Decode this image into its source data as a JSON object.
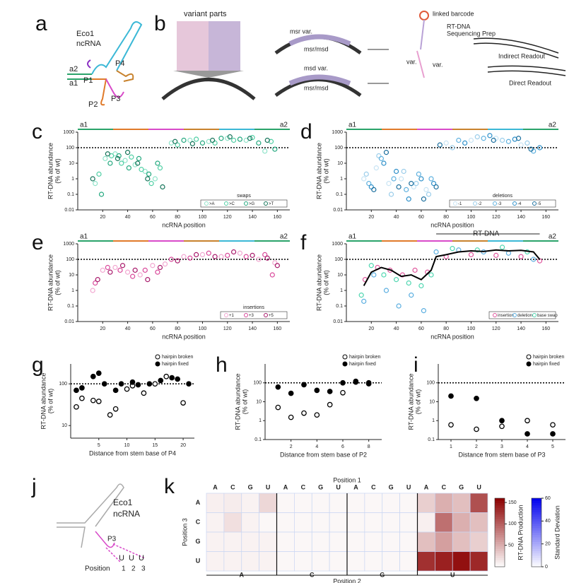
{
  "panel_labels": [
    "a",
    "b",
    "c",
    "d",
    "e",
    "f",
    "g",
    "h",
    "i",
    "j",
    "k"
  ],
  "a": {
    "texts": [
      "Eco1",
      "ncRNA",
      "a2",
      "a1",
      "P1",
      "P2",
      "P3",
      "P4"
    ]
  },
  "b": {
    "texts": [
      "variant parts",
      "msr var.",
      "msr/msd",
      "msd var.",
      "msr/msd",
      "linked barcode",
      "RT-DNA",
      "Sequencing Prep",
      "Indirect Readout",
      "Direct Readout",
      "var.",
      "var."
    ]
  },
  "scatter_panels": [
    {
      "ylabel": "RT-DNA abundance",
      "ylabel_unit": "(% of wt)",
      "xlabel": "ncRNA position",
      "legend_title": "swaps",
      "end_labels": [
        "a1",
        "a2"
      ],
      "xlim": [
        0,
        170
      ],
      "xticks": [
        20,
        40,
        60,
        80,
        100,
        120,
        140,
        160
      ],
      "ylim": [
        0.01,
        1000
      ],
      "yticks": [
        0.01,
        0.1,
        1,
        10,
        100,
        1000
      ],
      "log_y": true,
      "reference_line": 100,
      "series": [
        {
          "name": ">A",
          "color": "#8fe3c9",
          "x": [
            14,
            22,
            30,
            38,
            46,
            54,
            62,
            75,
            90,
            105,
            120,
            135,
            150
          ],
          "values": [
            0.5,
            20,
            40,
            15,
            8,
            3,
            1,
            200,
            300,
            250,
            400,
            300,
            60
          ]
        },
        {
          "name": ">C",
          "color": "#4fcfa4",
          "x": [
            17,
            27,
            35,
            43,
            51,
            59,
            66,
            80,
            95,
            110,
            125,
            140,
            155
          ],
          "values": [
            2,
            30,
            10,
            25,
            4,
            0.5,
            5,
            150,
            350,
            200,
            300,
            450,
            250
          ]
        },
        {
          "name": ">G",
          "color": "#22a87e",
          "x": [
            19,
            26,
            33,
            41,
            49,
            57,
            64,
            85,
            100,
            115,
            130,
            145,
            158
          ],
          "values": [
            0.1,
            10,
            30,
            5,
            20,
            2,
            10,
            300,
            200,
            400,
            350,
            200,
            80
          ]
        },
        {
          "name": ">T",
          "color": "#137358",
          "x": [
            12,
            24,
            32,
            40,
            48,
            56,
            68,
            78,
            92,
            108,
            122,
            138,
            152
          ],
          "values": [
            1,
            40,
            20,
            50,
            10,
            1,
            0.3,
            250,
            180,
            300,
            500,
            400,
            300
          ]
        }
      ]
    },
    {
      "ylabel": "RT-DNA abundance",
      "ylabel_unit": "(% of wt)",
      "xlabel": "ncRNA position",
      "legend_title": "deletions",
      "end_labels": [
        "a1",
        "a2"
      ],
      "xlim": [
        0,
        170
      ],
      "xticks": [
        20,
        40,
        60,
        80,
        100,
        120,
        140,
        160
      ],
      "ylim": [
        0.01,
        1000
      ],
      "yticks": [
        0.01,
        0.1,
        1,
        10,
        100,
        1000
      ],
      "log_y": true,
      "reference_line": 100,
      "series": [
        {
          "name": "-1",
          "color": "#c8e4f4",
          "x": [
            14,
            24,
            34,
            44,
            54,
            64,
            80,
            100,
            120,
            140
          ],
          "values": [
            1,
            5,
            0.5,
            1,
            0.3,
            0.2,
            200,
            300,
            400,
            150
          ]
        },
        {
          "name": "-2",
          "color": "#9acdea",
          "x": [
            16,
            26,
            36,
            46,
            56,
            66,
            85,
            105,
            125,
            145
          ],
          "values": [
            2,
            30,
            0.1,
            3,
            0.5,
            0.1,
            100,
            500,
            300,
            200
          ]
        },
        {
          "name": "-3",
          "color": "#5fb1df",
          "x": [
            18,
            28,
            38,
            48,
            58,
            68,
            90,
            110,
            130,
            150
          ],
          "values": [
            0.5,
            20,
            1,
            0.2,
            2,
            1,
            300,
            400,
            250,
            60
          ]
        },
        {
          "name": "-4",
          "color": "#2d8fc9",
          "x": [
            20,
            30,
            40,
            50,
            60,
            70,
            95,
            115,
            135,
            155
          ],
          "values": [
            0.3,
            10,
            3,
            0.05,
            1,
            0.5,
            200,
            600,
            350,
            100
          ]
        },
        {
          "name": "-5",
          "color": "#1b6f9e",
          "x": [
            22,
            32,
            42,
            52,
            62,
            72,
            75,
            118,
            138,
            148
          ],
          "values": [
            0.2,
            50,
            0.3,
            0.5,
            0.05,
            0.3,
            150,
            300,
            400,
            80
          ]
        }
      ]
    },
    {
      "ylabel": "RT-DNA abundance",
      "ylabel_unit": "(% of wt)",
      "xlabel": "ncRNA position",
      "legend_title": "insertions",
      "end_labels": [
        "a1",
        "a2"
      ],
      "xlim": [
        0,
        170
      ],
      "xticks": [
        20,
        40,
        60,
        80,
        100,
        120,
        140,
        160
      ],
      "ylim": [
        0.01,
        1000
      ],
      "yticks": [
        0.01,
        0.1,
        1,
        10,
        100,
        1000
      ],
      "log_y": true,
      "reference_line": 100,
      "series": [
        {
          "name": "+1",
          "color": "#f2a6d0",
          "x": [
            12,
            20,
            30,
            40,
            50,
            60,
            70,
            85,
            100,
            115,
            130,
            145,
            158
          ],
          "values": [
            1,
            20,
            30,
            15,
            10,
            40,
            50,
            150,
            200,
            150,
            250,
            100,
            60
          ]
        },
        {
          "name": "+3",
          "color": "#d9489a",
          "x": [
            14,
            24,
            34,
            44,
            54,
            64,
            75,
            90,
            105,
            120,
            135,
            150,
            156
          ],
          "values": [
            3,
            30,
            20,
            8,
            20,
            15,
            100,
            120,
            250,
            180,
            150,
            200,
            10
          ]
        },
        {
          "name": "+5",
          "color": "#a8186a",
          "x": [
            16,
            26,
            36,
            46,
            56,
            66,
            80,
            95,
            110,
            125,
            140,
            152,
            160
          ],
          "values": [
            5,
            15,
            40,
            20,
            5,
            30,
            80,
            200,
            150,
            300,
            180,
            120,
            40
          ]
        }
      ]
    },
    {
      "ylabel": "RT-DNA abundance",
      "ylabel_unit": "(% of wt)",
      "xlabel": "ncRNA position",
      "region_label": "RT-DNA",
      "end_labels": [
        "a1",
        "a2"
      ],
      "xlim": [
        0,
        170
      ],
      "xticks": [
        20,
        40,
        60,
        80,
        100,
        120,
        140,
        160
      ],
      "ylim": [
        0.01,
        1000
      ],
      "yticks": [
        0.01,
        0.1,
        1,
        10,
        100,
        1000
      ],
      "log_y": true,
      "reference_line": 100,
      "series": [
        {
          "name": "insertion",
          "color": "#e0579d",
          "x": [
            15,
            25,
            35,
            45,
            55,
            65,
            80,
            100,
            120,
            140,
            155
          ],
          "values": [
            5,
            30,
            20,
            10,
            20,
            15,
            150,
            200,
            180,
            150,
            80
          ]
        },
        {
          "name": "deletion",
          "color": "#5aaee0",
          "x": [
            14,
            22,
            32,
            42,
            52,
            62,
            72,
            90,
            110,
            130,
            150
          ],
          "values": [
            0.2,
            10,
            1,
            0.1,
            0.5,
            0.05,
            300,
            400,
            300,
            250,
            100
          ]
        },
        {
          "name": "base swap",
          "color": "#4fd6b0",
          "x": [
            12,
            20,
            30,
            40,
            50,
            60,
            68,
            85,
            105,
            125,
            145
          ],
          "values": [
            0.5,
            40,
            10,
            5,
            3,
            2,
            10,
            500,
            400,
            600,
            300
          ]
        }
      ],
      "trend_line": {
        "color": "#000000",
        "x": [
          14,
          20,
          28,
          36,
          44,
          52,
          60,
          68,
          72,
          80,
          90,
          100,
          110,
          120,
          130,
          140,
          150,
          155
        ],
        "values": [
          2,
          15,
          30,
          20,
          8,
          10,
          5,
          20,
          150,
          200,
          300,
          350,
          320,
          400,
          350,
          380,
          300,
          100
        ]
      }
    }
  ],
  "hairpin_panels": [
    {
      "ylabel": "RT-DNA abundance",
      "ylabel_unit": "(% of wt)",
      "xlabel": "Distance from stem base of P4",
      "xlim": [
        0,
        22
      ],
      "xticks": [
        5,
        10,
        15,
        20
      ],
      "ylim": [
        5,
        300
      ],
      "yticks": [
        10,
        100
      ],
      "log_y": true,
      "reference_line": 100,
      "series": [
        {
          "name": "hairpin broken",
          "color": "#000000",
          "x": [
            1,
            2,
            4,
            5,
            7,
            8,
            10,
            11,
            13,
            15,
            17,
            20
          ],
          "values": [
            28,
            45,
            40,
            38,
            18,
            25,
            75,
            90,
            60,
            100,
            150,
            35
          ]
        },
        {
          "name": "hairpin fixed",
          "color": "#000000",
          "x": [
            1,
            2,
            4,
            5,
            6,
            8,
            9,
            11,
            12,
            14,
            16,
            18,
            19,
            21
          ],
          "values": [
            70,
            80,
            150,
            180,
            100,
            70,
            100,
            110,
            95,
            100,
            120,
            140,
            130,
            100
          ]
        }
      ]
    },
    {
      "ylabel": "RT-DNA abundance",
      "ylabel_unit": "(% of wt)",
      "xlabel": "Distance from stem base of P2",
      "xlim": [
        0,
        9
      ],
      "xticks": [
        2,
        4,
        6,
        8
      ],
      "ylim": [
        0.1,
        1000
      ],
      "yticks": [
        0.1,
        1,
        10,
        100
      ],
      "log_y": true,
      "reference_line": 100,
      "series": [
        {
          "name": "hairpin broken",
          "color": "#000000",
          "x": [
            1,
            2,
            3,
            4,
            5,
            6,
            7,
            8
          ],
          "values": [
            5,
            1.5,
            2.5,
            2,
            7,
            30,
            120,
            90
          ]
        },
        {
          "name": "hairpin fixed",
          "color": "#000000",
          "x": [
            1,
            2,
            3,
            4,
            5,
            6,
            7,
            8
          ],
          "values": [
            60,
            28,
            80,
            40,
            35,
            100,
            110,
            100
          ]
        }
      ]
    },
    {
      "ylabel": "RT-DNA abundance",
      "ylabel_unit": "(% of wt)",
      "xlabel": "Distance from stem base of P3",
      "xlim": [
        0.5,
        5.5
      ],
      "xticks": [
        1,
        2,
        3,
        4,
        5
      ],
      "ylim": [
        0.1,
        1000
      ],
      "yticks": [
        0.1,
        1,
        10,
        100
      ],
      "log_y": true,
      "reference_line": 100,
      "series": [
        {
          "name": "hairpin broken",
          "color": "#000000",
          "x": [
            1,
            2,
            3,
            4,
            5
          ],
          "values": [
            0.6,
            0.35,
            0.5,
            1,
            0.6
          ]
        },
        {
          "name": "hairpin fixed",
          "color": "#000000",
          "x": [
            1,
            2,
            3,
            4,
            5
          ],
          "values": [
            20,
            15,
            1,
            0.2,
            0.2
          ]
        }
      ]
    }
  ],
  "j": {
    "texts": [
      "Eco1",
      "ncRNA",
      "P3",
      "Position",
      "1",
      "2",
      "3"
    ],
    "bases": [
      "U",
      "U",
      "U"
    ]
  },
  "k": {
    "type": "heatmap",
    "xlabel_top": "Position 1",
    "xlabel_bottom": "Position 2",
    "ylabel": "Position 3",
    "position1": [
      "A",
      "C",
      "G",
      "U"
    ],
    "position2": [
      "A",
      "C",
      "G",
      "U"
    ],
    "position3": [
      "A",
      "C",
      "G",
      "U"
    ],
    "values": [
      [
        10,
        12,
        8,
        25,
        5,
        5,
        5,
        5,
        5,
        5,
        5,
        5,
        30,
        50,
        40,
        110
      ],
      [
        8,
        20,
        8,
        5,
        5,
        5,
        5,
        5,
        5,
        5,
        5,
        5,
        10,
        90,
        50,
        40
      ],
      [
        8,
        8,
        8,
        8,
        5,
        5,
        5,
        5,
        5,
        5,
        5,
        5,
        40,
        60,
        40,
        30
      ],
      [
        8,
        8,
        8,
        8,
        5,
        5,
        5,
        5,
        5,
        5,
        5,
        5,
        130,
        140,
        150,
        135
      ]
    ],
    "colorbar": {
      "label": "RT-DNA Production",
      "lim": [
        0,
        160
      ],
      "ticks": [
        50,
        100,
        150
      ],
      "color": "#8b0000"
    },
    "colorbar2": {
      "label": "Standard Deviation",
      "lim": [
        0,
        60
      ],
      "ticks": [
        0,
        20,
        40,
        60
      ],
      "color": "#0000ee"
    }
  }
}
